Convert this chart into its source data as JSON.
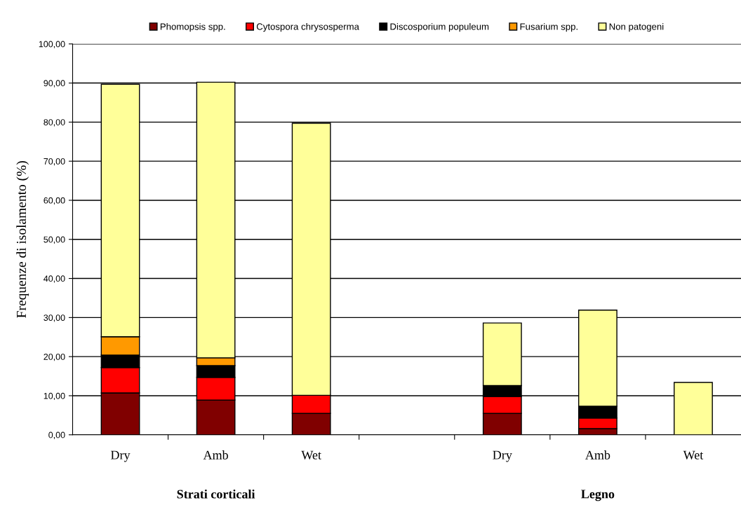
{
  "chart_data": {
    "type": "bar",
    "stacked": true,
    "ylabel": "Frequenze di isolamento (%)",
    "categories": [
      "Dry",
      "Amb",
      "Wet",
      null,
      "Dry",
      "Amb",
      "Wet"
    ],
    "series": [
      {
        "name": "Phomopsis spp.",
        "color": "#800000",
        "values": [
          10.7,
          8.9,
          5.5,
          null,
          5.5,
          1.6,
          null
        ]
      },
      {
        "name": "Cytospora chrysosperma",
        "color": "#ff0000",
        "values": [
          6.5,
          5.8,
          4.6,
          null,
          4.3,
          2.7,
          null
        ]
      },
      {
        "name": "Discosporium populeum",
        "color": "#000000",
        "values": [
          3.2,
          3.0,
          null,
          null,
          2.8,
          3.0,
          null
        ]
      },
      {
        "name": "Fusarium spp.",
        "color": "#ff9900",
        "values": [
          4.7,
          2.0,
          null,
          null,
          null,
          null,
          null
        ]
      },
      {
        "name": "Non patogeni",
        "color": "#ffff99",
        "values": [
          64.6,
          70.5,
          69.6,
          null,
          16.0,
          24.6,
          13.4
        ]
      }
    ],
    "ylim": [
      0,
      100
    ],
    "yticks": [
      {
        "value": 0,
        "label": "0,00"
      },
      {
        "value": 10,
        "label": "10,00"
      },
      {
        "value": 20,
        "label": "20,00"
      },
      {
        "value": 30,
        "label": "30,00"
      },
      {
        "value": 40,
        "label": "40,00"
      },
      {
        "value": 50,
        "label": "50,00"
      },
      {
        "value": 60,
        "label": "60,00"
      },
      {
        "value": 70,
        "label": "70,00"
      },
      {
        "value": 80,
        "label": "80,00"
      },
      {
        "value": 90,
        "label": "90,00"
      },
      {
        "value": 100,
        "label": "100,00"
      }
    ],
    "grid": "y",
    "legend": "top",
    "annotations": [
      "Strati corticali",
      "Legno"
    ]
  }
}
